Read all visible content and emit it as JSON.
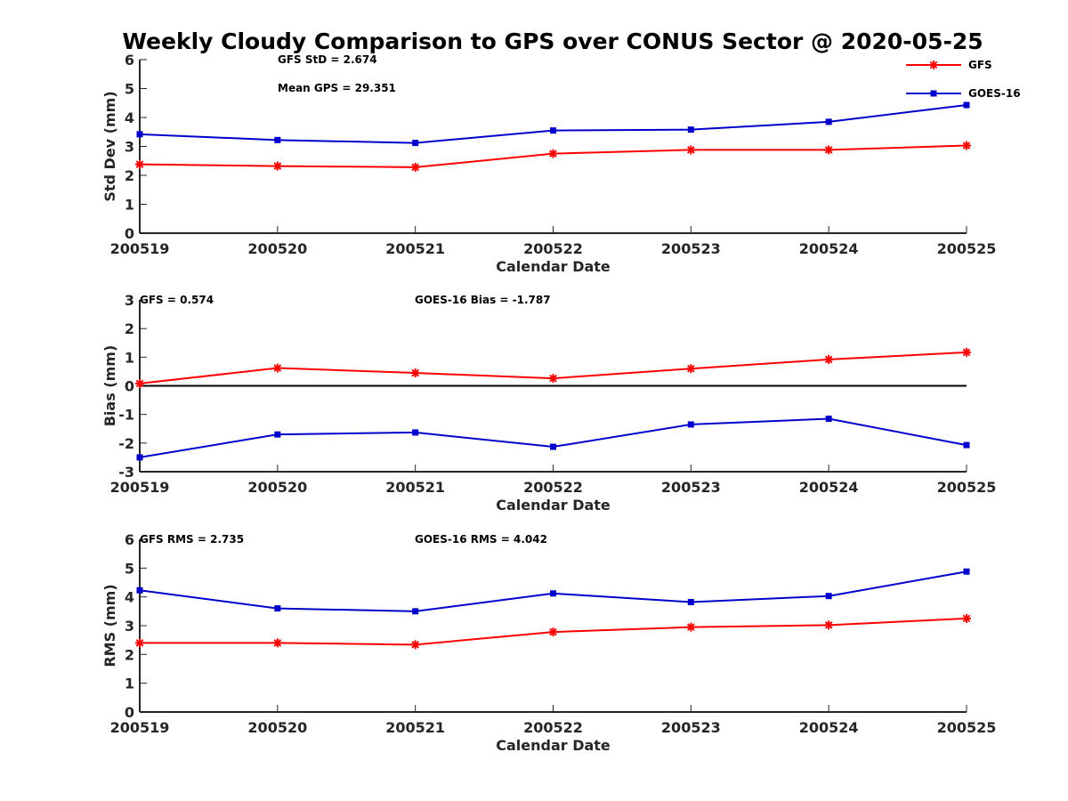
{
  "figure_title": "Weekly Cloudy Comparison to GPS over CONUS Sector @ 2020-05-25",
  "colors": {
    "GFS": "#ff0000",
    "GOES-16": "#0000cc",
    "zero_line": "#000000"
  },
  "legend": {
    "placement": "top-right",
    "entries": [
      {
        "name": "GFS",
        "marker": "asterisk"
      },
      {
        "name": "GOES-16",
        "marker": "square"
      }
    ]
  },
  "chart_data": [
    {
      "type": "line",
      "categories": [
        "200519",
        "200520",
        "200521",
        "200522",
        "200523",
        "200524",
        "200525"
      ],
      "xlabel": "Calendar Date",
      "ylabel": "Std Dev (mm)",
      "ylim": [
        0,
        6
      ],
      "yticks": [
        0,
        1,
        2,
        3,
        4,
        5,
        6
      ],
      "zero_line": false,
      "series": [
        {
          "name": "GFS",
          "values": [
            2.38,
            2.32,
            2.28,
            2.75,
            2.88,
            2.88,
            3.03
          ]
        },
        {
          "name": "GOES-16",
          "values": [
            3.42,
            3.22,
            3.12,
            3.55,
            3.58,
            3.85,
            4.43
          ]
        }
      ],
      "annotations": [
        "GFS StD = 2.674",
        "Mean GPS = 29.351"
      ]
    },
    {
      "type": "line",
      "categories": [
        "200519",
        "200520",
        "200521",
        "200522",
        "200523",
        "200524",
        "200525"
      ],
      "xlabel": "Calendar Date",
      "ylabel": "Bias (mm)",
      "ylim": [
        -3,
        3
      ],
      "yticks": [
        -3,
        -2,
        -1,
        0,
        1,
        2,
        3
      ],
      "zero_line": true,
      "series": [
        {
          "name": "GFS",
          "values": [
            0.08,
            0.62,
            0.45,
            0.26,
            0.6,
            0.92,
            1.17
          ]
        },
        {
          "name": "GOES-16",
          "values": [
            -2.5,
            -1.7,
            -1.63,
            -2.13,
            -1.35,
            -1.15,
            -2.07
          ]
        }
      ],
      "annotations": [
        "GFS = 0.574",
        "GOES-16 Bias  = -1.787"
      ]
    },
    {
      "type": "line",
      "categories": [
        "200519",
        "200520",
        "200521",
        "200522",
        "200523",
        "200524",
        "200525"
      ],
      "xlabel": "Calendar Date",
      "ylabel": "RMS (mm)",
      "ylim": [
        0,
        6
      ],
      "yticks": [
        0,
        1,
        2,
        3,
        4,
        5,
        6
      ],
      "zero_line": false,
      "series": [
        {
          "name": "GFS",
          "values": [
            2.4,
            2.4,
            2.34,
            2.78,
            2.95,
            3.02,
            3.25
          ]
        },
        {
          "name": "GOES-16",
          "values": [
            4.23,
            3.6,
            3.5,
            4.12,
            3.82,
            4.03,
            4.88
          ]
        }
      ],
      "annotations": [
        "GFS RMS = 2.735",
        "GOES-16 RMS = 4.042"
      ]
    }
  ]
}
